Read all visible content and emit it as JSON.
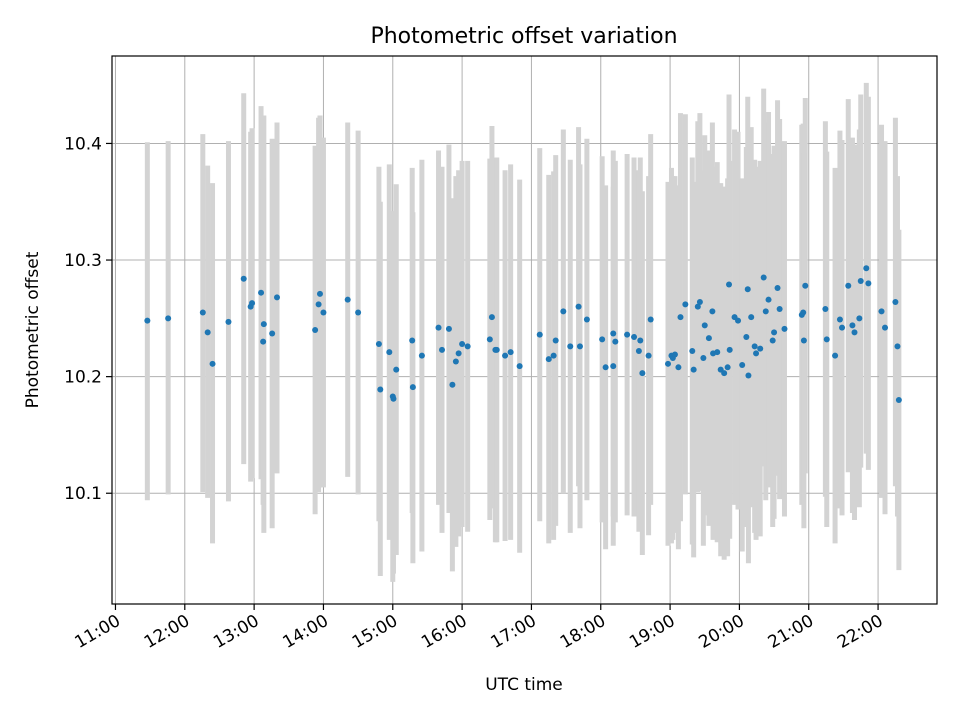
{
  "chart_data": {
    "type": "scatter",
    "title": "Photometric offset variation",
    "xlabel": "UTC time",
    "ylabel": "Photometric offset",
    "x_unit": "UTC hours",
    "xlim": [
      10.95,
      22.85
    ],
    "ylim": [
      10.005,
      10.475
    ],
    "grid": true,
    "xticks": [
      11,
      12,
      13,
      14,
      15,
      16,
      17,
      18,
      19,
      20,
      21,
      22
    ],
    "xtick_labels": [
      "11:00",
      "12:00",
      "13:00",
      "14:00",
      "15:00",
      "16:00",
      "17:00",
      "18:00",
      "19:00",
      "20:00",
      "21:00",
      "22:00"
    ],
    "yticks": [
      10.1,
      10.2,
      10.3,
      10.4
    ],
    "ytick_labels": [
      "10.1",
      "10.2",
      "10.3",
      "10.4"
    ],
    "point_color": "#1f77b4",
    "errorbar_color": "#d3d3d3",
    "series": [
      {
        "points": [
          [
            11.46,
            10.248,
            10.094,
            10.401
          ],
          [
            11.76,
            10.25,
            10.099,
            10.402
          ],
          [
            12.26,
            10.255,
            10.101,
            10.408
          ],
          [
            12.33,
            10.238,
            10.096,
            10.381
          ],
          [
            12.4,
            10.211,
            10.057,
            10.366
          ],
          [
            12.63,
            10.247,
            10.093,
            10.402
          ],
          [
            12.85,
            10.284,
            10.125,
            10.443
          ],
          [
            12.95,
            10.26,
            10.11,
            10.41
          ],
          [
            12.97,
            10.263,
            10.113,
            10.413
          ],
          [
            13.1,
            10.272,
            10.112,
            10.432
          ],
          [
            13.14,
            10.245,
            10.066,
            10.424
          ],
          [
            13.13,
            10.23,
            10.09,
            10.37
          ],
          [
            13.26,
            10.237,
            10.07,
            10.404
          ],
          [
            13.33,
            10.268,
            10.117,
            10.418
          ],
          [
            13.88,
            10.24,
            10.082,
            10.398
          ],
          [
            13.93,
            10.262,
            10.101,
            10.422
          ],
          [
            13.95,
            10.271,
            10.105,
            10.424
          ],
          [
            14.0,
            10.255,
            10.105,
            10.405
          ],
          [
            14.35,
            10.266,
            10.114,
            10.418
          ],
          [
            14.5,
            10.255,
            10.099,
            10.411
          ],
          [
            14.8,
            10.228,
            10.076,
            10.38
          ],
          [
            14.82,
            10.189,
            10.029,
            10.35
          ],
          [
            14.95,
            10.221,
            10.06,
            10.382
          ],
          [
            15.0,
            10.183,
            10.024,
            10.342
          ],
          [
            15.01,
            10.181,
            10.031,
            10.331
          ],
          [
            15.05,
            10.206,
            10.047,
            10.365
          ],
          [
            15.28,
            10.231,
            10.083,
            10.379
          ],
          [
            15.29,
            10.191,
            10.04,
            10.341
          ],
          [
            15.42,
            10.218,
            10.05,
            10.386
          ],
          [
            15.66,
            10.242,
            10.09,
            10.394
          ],
          [
            15.71,
            10.223,
            10.066,
            10.38
          ],
          [
            15.81,
            10.241,
            10.083,
            10.399
          ],
          [
            15.86,
            10.193,
            10.033,
            10.353
          ],
          [
            15.91,
            10.213,
            10.054,
            10.372
          ],
          [
            15.95,
            10.22,
            10.063,
            10.377
          ],
          [
            16.0,
            10.228,
            10.071,
            10.385
          ],
          [
            16.08,
            10.226,
            10.067,
            10.385
          ],
          [
            16.4,
            10.232,
            10.077,
            10.387
          ],
          [
            16.43,
            10.251,
            10.087,
            10.415
          ],
          [
            16.48,
            10.223,
            10.058,
            10.388
          ],
          [
            16.5,
            10.223,
            10.058,
            10.388
          ],
          [
            16.62,
            10.218,
            10.059,
            10.377
          ],
          [
            16.7,
            10.221,
            10.06,
            10.382
          ],
          [
            16.83,
            10.209,
            10.049,
            10.369
          ],
          [
            17.12,
            10.236,
            10.076,
            10.396
          ],
          [
            17.25,
            10.215,
            10.057,
            10.373
          ],
          [
            17.32,
            10.218,
            10.06,
            10.376
          ],
          [
            17.35,
            10.231,
            10.072,
            10.39
          ],
          [
            17.46,
            10.256,
            10.1,
            10.412
          ],
          [
            17.56,
            10.226,
            10.066,
            10.386
          ],
          [
            17.68,
            10.26,
            10.106,
            10.414
          ],
          [
            17.7,
            10.226,
            10.07,
            10.382
          ],
          [
            17.8,
            10.249,
            10.094,
            10.404
          ],
          [
            18.02,
            10.232,
            10.075,
            10.389
          ],
          [
            18.07,
            10.208,
            10.052,
            10.364
          ],
          [
            18.18,
            10.209,
            10.055,
            10.363
          ],
          [
            18.18,
            10.237,
            10.08,
            10.394
          ],
          [
            18.21,
            10.23,
            10.075,
            10.385
          ],
          [
            18.38,
            10.236,
            10.081,
            10.391
          ],
          [
            18.48,
            10.234,
            10.08,
            10.388
          ],
          [
            18.55,
            10.222,
            10.067,
            10.377
          ],
          [
            18.57,
            10.231,
            10.074,
            10.388
          ],
          [
            18.6,
            10.203,
            10.047,
            10.359
          ],
          [
            18.69,
            10.218,
            10.064,
            10.372
          ],
          [
            18.72,
            10.249,
            10.09,
            10.408
          ],
          [
            18.97,
            10.211,
            10.055,
            10.367
          ],
          [
            19.02,
            10.218,
            10.057,
            10.379
          ],
          [
            19.04,
            10.216,
            10.06,
            10.372
          ],
          [
            19.07,
            10.219,
            10.066,
            10.372
          ],
          [
            19.12,
            10.208,
            10.052,
            10.364
          ],
          [
            19.15,
            10.251,
            10.076,
            10.426
          ],
          [
            19.22,
            10.262,
            10.099,
            10.425
          ],
          [
            19.32,
            10.222,
            10.056,
            10.388
          ],
          [
            19.34,
            10.206,
            10.045,
            10.367
          ],
          [
            19.4,
            10.26,
            10.101,
            10.419
          ],
          [
            19.43,
            10.264,
            10.102,
            10.426
          ],
          [
            19.48,
            10.216,
            10.055,
            10.377
          ],
          [
            19.5,
            10.244,
            10.081,
            10.407
          ],
          [
            19.56,
            10.233,
            10.072,
            10.394
          ],
          [
            19.61,
            10.256,
            10.094,
            10.418
          ],
          [
            19.62,
            10.22,
            10.06,
            10.38
          ],
          [
            19.68,
            10.221,
            10.058,
            10.384
          ],
          [
            19.73,
            10.206,
            10.046,
            10.366
          ],
          [
            19.78,
            10.203,
            10.043,
            10.363
          ],
          [
            19.83,
            10.208,
            10.046,
            10.37
          ],
          [
            19.85,
            10.279,
            10.116,
            10.442
          ],
          [
            19.86,
            10.223,
            10.061,
            10.385
          ],
          [
            19.93,
            10.251,
            10.09,
            10.412
          ],
          [
            19.98,
            10.248,
            10.086,
            10.41
          ],
          [
            20.04,
            10.21,
            10.05,
            10.37
          ],
          [
            20.1,
            10.234,
            10.071,
            10.397
          ],
          [
            20.13,
            10.201,
            10.04,
            10.362
          ],
          [
            20.12,
            10.275,
            10.11,
            10.44
          ],
          [
            20.17,
            10.251,
            10.088,
            10.414
          ],
          [
            20.22,
            10.226,
            10.066,
            10.386
          ],
          [
            20.24,
            10.22,
            10.06,
            10.38
          ],
          [
            20.3,
            10.224,
            10.063,
            10.385
          ],
          [
            20.35,
            10.285,
            10.123,
            10.447
          ],
          [
            20.38,
            10.256,
            10.094,
            10.418
          ],
          [
            20.42,
            10.266,
            10.105,
            10.427
          ],
          [
            20.48,
            10.231,
            10.071,
            10.391
          ],
          [
            20.5,
            10.238,
            10.078,
            10.398
          ],
          [
            20.55,
            10.276,
            10.115,
            10.437
          ],
          [
            20.58,
            10.258,
            10.095,
            10.421
          ],
          [
            20.65,
            10.241,
            10.08,
            10.402
          ],
          [
            20.9,
            10.253,
            10.09,
            10.416
          ],
          [
            20.92,
            10.255,
            10.093,
            10.417
          ],
          [
            20.95,
            10.278,
            10.117,
            10.439
          ],
          [
            20.93,
            10.231,
            10.07,
            10.392
          ],
          [
            21.24,
            10.258,
            10.097,
            10.419
          ],
          [
            21.26,
            10.232,
            10.071,
            10.393
          ],
          [
            21.38,
            10.218,
            10.057,
            10.379
          ],
          [
            21.45,
            10.249,
            10.087,
            10.411
          ],
          [
            21.48,
            10.242,
            10.081,
            10.403
          ],
          [
            21.57,
            10.278,
            10.118,
            10.438
          ],
          [
            21.63,
            10.244,
            10.083,
            10.405
          ],
          [
            21.66,
            10.238,
            10.077,
            10.399
          ],
          [
            21.73,
            10.25,
            10.088,
            10.412
          ],
          [
            21.75,
            10.282,
            10.122,
            10.442
          ],
          [
            21.83,
            10.293,
            10.134,
            10.452
          ],
          [
            21.86,
            10.28,
            10.12,
            10.44
          ],
          [
            22.05,
            10.256,
            10.096,
            10.416
          ],
          [
            22.1,
            10.242,
            10.082,
            10.402
          ],
          [
            22.25,
            10.264,
            10.106,
            10.422
          ],
          [
            22.28,
            10.226,
            10.08,
            10.372
          ],
          [
            22.3,
            10.18,
            10.034,
            10.326
          ]
        ]
      }
    ]
  }
}
